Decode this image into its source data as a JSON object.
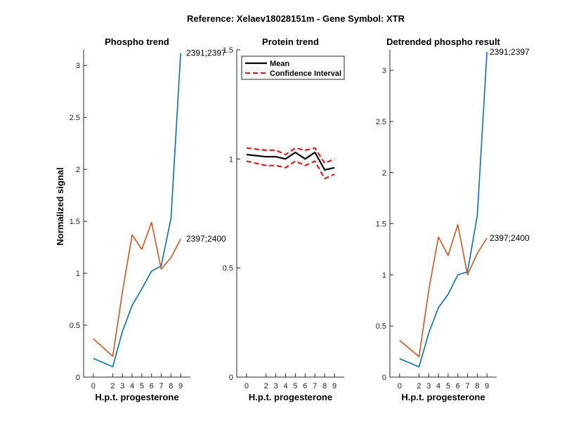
{
  "figure": {
    "suptitle": "Reference:  Xelaev18028151m - Gene Symbol:  XTR"
  },
  "chart_data": [
    {
      "type": "line",
      "title": "Phospho trend",
      "xlabel": "H.p.t. progesterone",
      "ylabel": "Normalized signal",
      "x": [
        0,
        2,
        3,
        4,
        5,
        6,
        7,
        8,
        9
      ],
      "xticks": [
        "0",
        "2",
        "3",
        "4",
        "5",
        "6",
        "7",
        "8",
        "9"
      ],
      "ylim": [
        0,
        3.15
      ],
      "yticks": [
        "0",
        "0.5",
        "1",
        "1.5",
        "2",
        "2.5",
        "3"
      ],
      "series": [
        {
          "name": "2391;2397",
          "color": "#0072bd",
          "values": [
            0.18,
            0.1,
            0.44,
            0.69,
            0.85,
            1.02,
            1.07,
            1.53,
            3.12
          ]
        },
        {
          "name": "2397;2400",
          "color": "#d95319",
          "values": [
            0.37,
            0.2,
            0.82,
            1.37,
            1.23,
            1.49,
            1.04,
            1.15,
            1.33
          ]
        }
      ],
      "annotations": [
        "2391;2397",
        "2397;2400"
      ]
    },
    {
      "type": "line",
      "title": "Protein trend",
      "xlabel": "H.p.t. progesterone",
      "ylabel": "",
      "x": [
        0,
        2,
        3,
        4,
        5,
        6,
        7,
        8,
        9
      ],
      "xticks": [
        "0",
        "2",
        "3",
        "4",
        "5",
        "6",
        "7",
        "8",
        "9"
      ],
      "ylim": [
        0,
        1.5
      ],
      "yticks": [
        "0",
        "0.5",
        "1",
        "1.5"
      ],
      "legend": {
        "location": "top-left",
        "entries": [
          "Mean",
          "Confidence Interval"
        ]
      },
      "series": [
        {
          "name": "Mean",
          "color": "#000000",
          "style": "solid",
          "values": [
            1.02,
            1.01,
            1.01,
            1.0,
            1.03,
            1.0,
            1.03,
            0.95,
            0.96
          ]
        },
        {
          "name": "Confidence Interval",
          "color": "#e41a1c",
          "style": "dashed",
          "values": [
            1.05,
            1.04,
            1.04,
            1.02,
            1.05,
            1.04,
            1.05,
            0.98,
            1.0
          ]
        },
        {
          "name": "Confidence Interval",
          "color": "#e41a1c",
          "style": "dashed",
          "values": [
            0.99,
            0.97,
            0.97,
            0.96,
            0.99,
            0.97,
            0.99,
            0.91,
            0.93
          ]
        }
      ]
    },
    {
      "type": "line",
      "title": "Detrended phospho result",
      "xlabel": "H.p.t. progesterone",
      "ylabel": "",
      "x": [
        0,
        2,
        3,
        4,
        5,
        6,
        7,
        8,
        9
      ],
      "xticks": [
        "0",
        "2",
        "3",
        "4",
        "5",
        "6",
        "7",
        "8",
        "9"
      ],
      "ylim": [
        0,
        3.2
      ],
      "yticks": [
        "0",
        "0.5",
        "1",
        "1.5",
        "2",
        "2.5",
        "3"
      ],
      "series": [
        {
          "name": "2391;2397",
          "color": "#0072bd",
          "values": [
            0.18,
            0.1,
            0.43,
            0.68,
            0.81,
            1.0,
            1.03,
            1.58,
            3.18
          ]
        },
        {
          "name": "2397;2400",
          "color": "#d95319",
          "values": [
            0.36,
            0.2,
            0.85,
            1.37,
            1.19,
            1.49,
            1.0,
            1.21,
            1.36
          ]
        }
      ],
      "annotations": [
        "2391;2397",
        "2397;2400"
      ]
    }
  ]
}
